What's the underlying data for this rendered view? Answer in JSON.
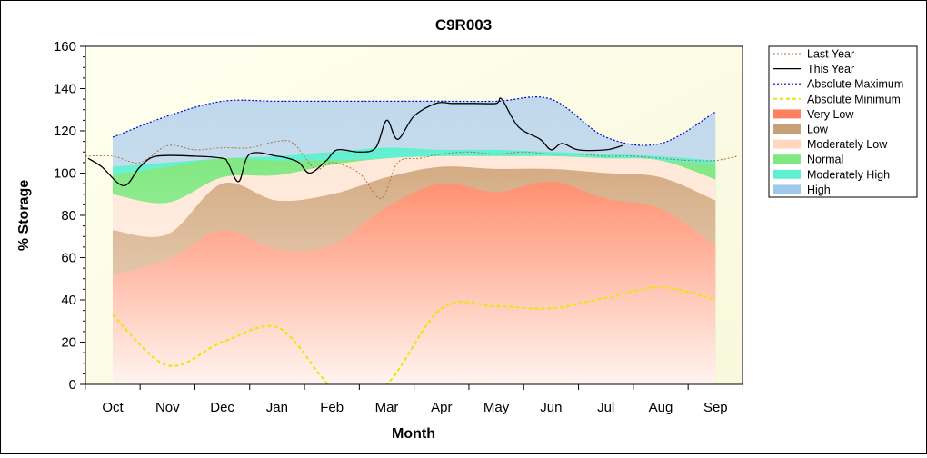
{
  "chart_data": {
    "type": "area",
    "title": "C9R003",
    "xlabel": "Month",
    "ylabel": "% Storage",
    "ylim": [
      0,
      160
    ],
    "yticks": [
      0,
      20,
      40,
      60,
      80,
      100,
      120,
      140,
      160
    ],
    "categories": [
      "Oct",
      "Nov",
      "Dec",
      "Jan",
      "Feb",
      "Mar",
      "Apr",
      "May",
      "Jun",
      "Jul",
      "Aug",
      "Sep"
    ],
    "grid": false,
    "legend_position": "right",
    "bands": [
      {
        "name": "Very Low",
        "color": "#ff8060",
        "values": [
          52,
          59,
          73,
          64,
          66,
          84,
          95,
          91,
          96,
          88,
          83,
          66
        ]
      },
      {
        "name": "Low",
        "color": "#c8a078",
        "values": [
          73,
          71,
          95,
          87,
          90,
          98,
          103,
          102,
          102,
          100,
          98,
          87
        ]
      },
      {
        "name": "Moderately Low",
        "color": "#ffd8c0",
        "values": [
          90,
          86,
          98,
          99,
          104,
          107,
          108,
          108,
          108,
          107,
          106,
          97
        ]
      },
      {
        "name": "Normal",
        "color": "#80e880",
        "values": [
          99,
          103,
          107,
          106,
          106,
          107,
          108,
          108,
          108,
          107,
          106,
          104
        ]
      },
      {
        "name": "Moderately High",
        "color": "#60f0d0",
        "values": [
          103,
          105,
          107,
          108,
          110,
          112,
          111,
          111,
          110,
          109,
          108,
          106
        ]
      },
      {
        "name": "High",
        "color": "#a0c8e8",
        "values": [
          117,
          127,
          134,
          134,
          134,
          134,
          134,
          134,
          135,
          117,
          114,
          129
        ]
      }
    ],
    "series": [
      {
        "name": "Last Year",
        "color": "#b07040",
        "x": [
          -0.5,
          0,
          0.5,
          1,
          1.5,
          2,
          2.5,
          3,
          3.3,
          3.7,
          4,
          4.5,
          4.9,
          5.2,
          5.6,
          6,
          6.5,
          7,
          7.5,
          8,
          8.5,
          9,
          9.5,
          10,
          10.5,
          11,
          11.4
        ],
        "values": [
          108,
          108,
          105,
          113,
          111,
          112,
          112,
          115,
          114,
          102,
          105,
          100,
          88,
          105,
          107,
          109,
          110,
          109,
          110,
          109,
          109,
          108,
          108,
          107,
          106,
          106,
          108
        ]
      },
      {
        "name": "This Year",
        "color": "#000000",
        "x": [
          -0.45,
          -0.2,
          0.2,
          0.5,
          0.8,
          1.5,
          2,
          2.1,
          2.3,
          2.5,
          3,
          3.2,
          3.4,
          3.6,
          3.9,
          4.1,
          4.5,
          4.8,
          5,
          5.2,
          5.5,
          5.9,
          6.2,
          6.6,
          7,
          7.1,
          7.4,
          7.8,
          8,
          8.2,
          8.5,
          9,
          9.3
        ],
        "values": [
          107,
          103,
          94,
          103,
          108,
          108,
          107,
          105,
          96,
          109,
          108,
          107,
          105,
          100,
          106,
          111,
          110,
          112,
          125,
          116,
          127,
          133,
          133,
          133,
          133,
          135,
          122,
          116,
          111,
          114,
          111,
          111,
          113
        ]
      },
      {
        "name": "Absolute Maximum",
        "color": "#0000d0",
        "x": [
          0,
          1,
          2,
          3,
          4,
          5,
          6,
          7,
          8,
          9,
          10,
          11
        ],
        "values": [
          117,
          127,
          134,
          134,
          134,
          134,
          134,
          134,
          135,
          117,
          114,
          129
        ]
      },
      {
        "name": "Absolute Minimum",
        "color": "#e8e800",
        "x": [
          0,
          1,
          2,
          3,
          3.8,
          4.2,
          5,
          6,
          7,
          8,
          9,
          10,
          11
        ],
        "values": [
          33,
          9,
          20,
          27,
          4,
          -6,
          0,
          36,
          37,
          36,
          41,
          46,
          40
        ]
      }
    ]
  }
}
